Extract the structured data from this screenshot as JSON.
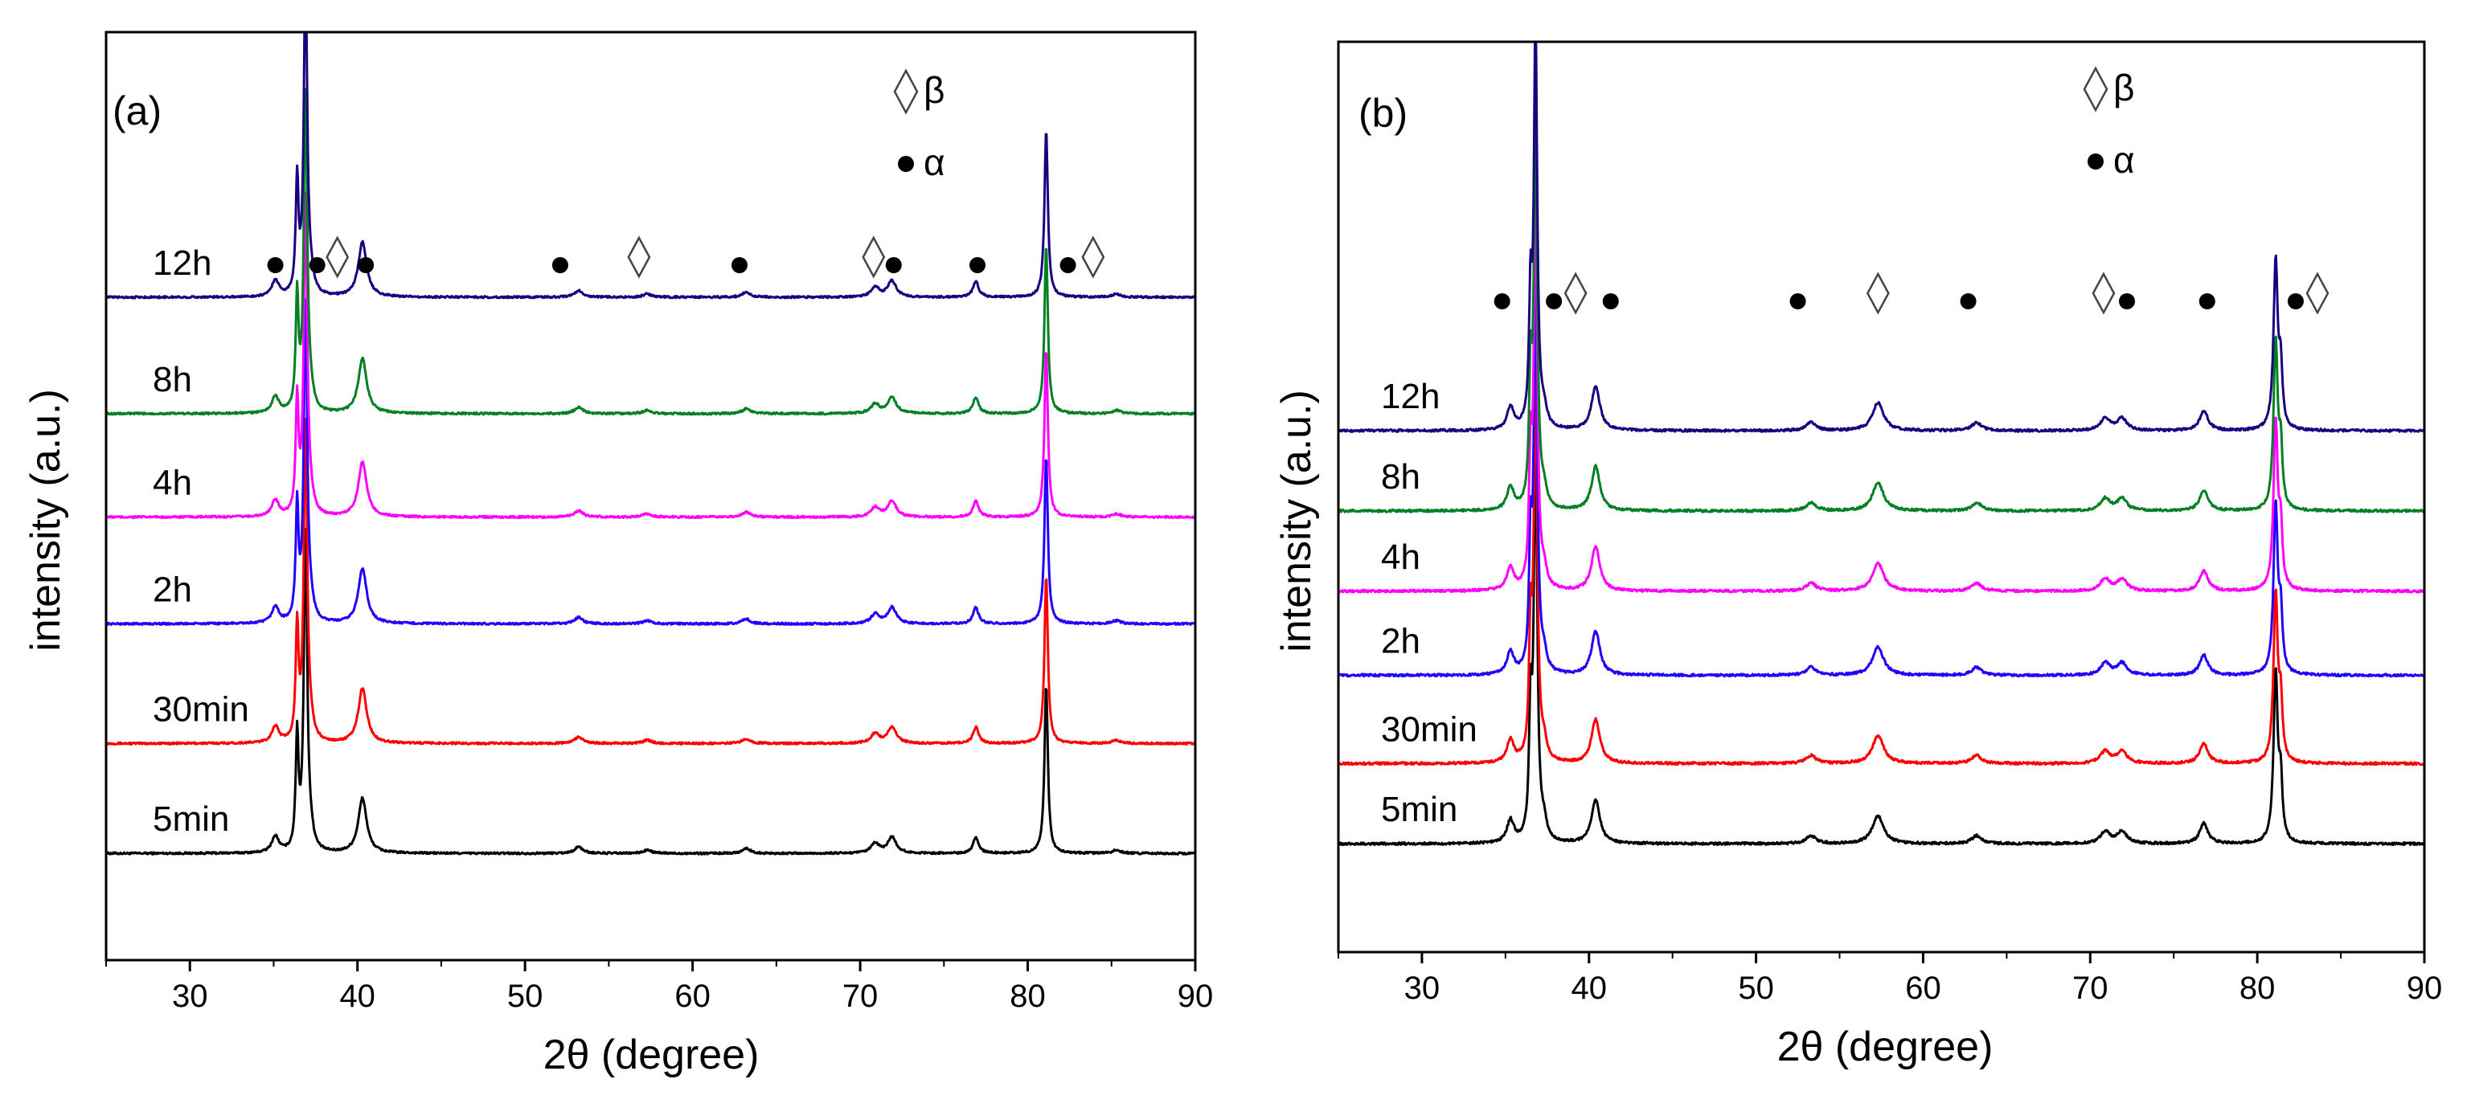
{
  "chart_data": [
    {
      "type": "line",
      "panel_label": "(a)",
      "xlabel": "2θ (degree)",
      "ylabel": "intensity (a.u.)",
      "xlim": [
        25,
        90
      ],
      "xticks": [
        30,
        40,
        50,
        60,
        70,
        80,
        90
      ],
      "yticks_visible": false,
      "legend": [
        {
          "symbol": "◊",
          "text": "β"
        },
        {
          "symbol": "●",
          "text": "α"
        }
      ],
      "phase_markers": [
        {
          "x": 35.1,
          "phase": "α",
          "symbol": "●"
        },
        {
          "x": 37.6,
          "phase": "α",
          "symbol": "●"
        },
        {
          "x": 38.8,
          "phase": "β",
          "symbol": "◊"
        },
        {
          "x": 40.5,
          "phase": "α",
          "symbol": "●"
        },
        {
          "x": 52.1,
          "phase": "α",
          "symbol": "●"
        },
        {
          "x": 56.8,
          "phase": "β",
          "symbol": "◊"
        },
        {
          "x": 62.8,
          "phase": "α",
          "symbol": "●"
        },
        {
          "x": 70.8,
          "phase": "β",
          "symbol": "◊"
        },
        {
          "x": 72.0,
          "phase": "α",
          "symbol": "●"
        },
        {
          "x": 77.0,
          "phase": "α",
          "symbol": "●"
        },
        {
          "x": 82.4,
          "phase": "α",
          "symbol": "●"
        },
        {
          "x": 83.9,
          "phase": "β",
          "symbol": "◊"
        }
      ],
      "peaks": [
        {
          "x": 35.1,
          "h": 0.05,
          "w": 0.25
        },
        {
          "x": 36.4,
          "h": 0.35,
          "w": 0.1
        },
        {
          "x": 36.9,
          "h": 1.0,
          "w": 0.12
        },
        {
          "x": 37.2,
          "h": 0.04,
          "w": 0.2
        },
        {
          "x": 40.3,
          "h": 0.17,
          "w": 0.3
        },
        {
          "x": 53.2,
          "h": 0.02,
          "w": 0.3
        },
        {
          "x": 57.3,
          "h": 0.01,
          "w": 0.3
        },
        {
          "x": 63.2,
          "h": 0.015,
          "w": 0.3
        },
        {
          "x": 70.9,
          "h": 0.03,
          "w": 0.3
        },
        {
          "x": 71.9,
          "h": 0.05,
          "w": 0.3
        },
        {
          "x": 76.9,
          "h": 0.05,
          "w": 0.2
        },
        {
          "x": 81.1,
          "h": 0.52,
          "w": 0.12
        },
        {
          "x": 85.3,
          "h": 0.01,
          "w": 0.3
        }
      ],
      "series": [
        {
          "name": "5min",
          "color": "#000000",
          "offset": 0,
          "scale": 1.0
        },
        {
          "name": "30min",
          "color": "#ff0000",
          "offset": 0.34,
          "scale": 1.0
        },
        {
          "name": "2h",
          "color": "#2000ff",
          "offset": 0.71,
          "scale": 1.0
        },
        {
          "name": "4h",
          "color": "#ff00ff",
          "offset": 1.04,
          "scale": 1.0
        },
        {
          "name": "8h",
          "color": "#008020",
          "offset": 1.36,
          "scale": 1.0
        },
        {
          "name": "12h",
          "color": "#1a0080",
          "offset": 1.72,
          "scale": 1.0
        }
      ],
      "ylim": [
        -0.33,
        2.54
      ]
    },
    {
      "type": "line",
      "panel_label": "(b)",
      "xlabel": "2θ (degree)",
      "ylabel": "intensity (a.u.)",
      "xlim": [
        25,
        90
      ],
      "xticks": [
        30,
        40,
        50,
        60,
        70,
        80,
        90
      ],
      "yticks_visible": false,
      "legend": [
        {
          "symbol": "◊",
          "text": "β"
        },
        {
          "symbol": "●",
          "text": "α"
        }
      ],
      "phase_markers": [
        {
          "x": 34.8,
          "phase": "α",
          "symbol": "●"
        },
        {
          "x": 37.9,
          "phase": "α",
          "symbol": "●"
        },
        {
          "x": 39.2,
          "phase": "β",
          "symbol": "◊"
        },
        {
          "x": 41.3,
          "phase": "α",
          "symbol": "●"
        },
        {
          "x": 52.5,
          "phase": "α",
          "symbol": "●"
        },
        {
          "x": 57.3,
          "phase": "β",
          "symbol": "◊"
        },
        {
          "x": 62.7,
          "phase": "α",
          "symbol": "●"
        },
        {
          "x": 70.8,
          "phase": "β",
          "symbol": "◊"
        },
        {
          "x": 72.2,
          "phase": "α",
          "symbol": "●"
        },
        {
          "x": 77.0,
          "phase": "α",
          "symbol": "●"
        },
        {
          "x": 82.3,
          "phase": "α",
          "symbol": "●"
        },
        {
          "x": 83.6,
          "phase": "β",
          "symbol": "◊"
        }
      ],
      "peaks": [
        {
          "x": 35.3,
          "h": 0.055,
          "w": 0.25
        },
        {
          "x": 36.5,
          "h": 0.3,
          "w": 0.1
        },
        {
          "x": 36.8,
          "h": 1.0,
          "w": 0.12
        },
        {
          "x": 37.3,
          "h": 0.04,
          "w": 0.2
        },
        {
          "x": 40.4,
          "h": 0.11,
          "w": 0.3
        },
        {
          "x": 53.3,
          "h": 0.02,
          "w": 0.35
        },
        {
          "x": 57.3,
          "h": 0.07,
          "w": 0.4
        },
        {
          "x": 63.2,
          "h": 0.02,
          "w": 0.35
        },
        {
          "x": 70.9,
          "h": 0.03,
          "w": 0.35
        },
        {
          "x": 71.9,
          "h": 0.03,
          "w": 0.35
        },
        {
          "x": 76.8,
          "h": 0.05,
          "w": 0.3
        },
        {
          "x": 81.1,
          "h": 0.42,
          "w": 0.15
        },
        {
          "x": 81.4,
          "h": 0.14,
          "w": 0.12
        }
      ],
      "series": [
        {
          "name": "5min",
          "color": "#000000",
          "offset": 0,
          "scale": 1.0
        },
        {
          "name": "30min",
          "color": "#ff0000",
          "offset": 0.2,
          "scale": 1.0
        },
        {
          "name": "2h",
          "color": "#2000ff",
          "offset": 0.42,
          "scale": 1.0
        },
        {
          "name": "4h",
          "color": "#ff00ff",
          "offset": 0.63,
          "scale": 1.0
        },
        {
          "name": "8h",
          "color": "#008020",
          "offset": 0.83,
          "scale": 1.0
        },
        {
          "name": "12h",
          "color": "#1a0080",
          "offset": 1.03,
          "scale": 1.0
        }
      ],
      "ylim": [
        -0.27,
        2.0
      ]
    }
  ]
}
